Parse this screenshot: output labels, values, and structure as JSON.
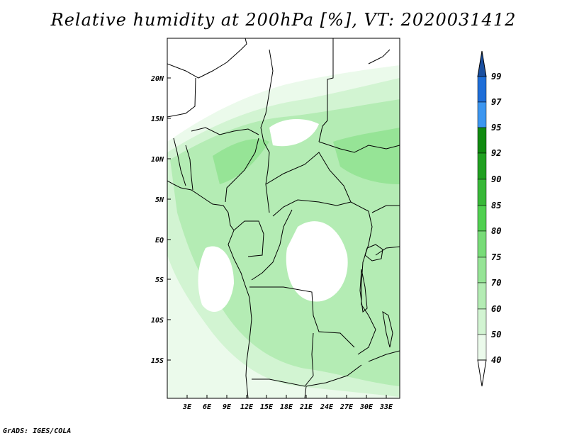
{
  "title": "Relative humidity at 200hPa [%], VT: 2020031412",
  "credit": "GrADS: IGES/COLA",
  "map": {
    "lon_labels": [
      "3E",
      "6E",
      "9E",
      "12E",
      "15E",
      "18E",
      "21E",
      "24E",
      "27E",
      "30E",
      "33E"
    ],
    "lat_labels": [
      "20N",
      "15N",
      "10N",
      "5N",
      "EQ",
      "5S",
      "10S",
      "15S"
    ],
    "lon_range": [
      0,
      35
    ],
    "lat_range": [
      -20,
      25
    ]
  },
  "colorbar": {
    "levels": [
      "99",
      "97",
      "95",
      "92",
      "90",
      "85",
      "80",
      "75",
      "70",
      "60",
      "50",
      "40"
    ],
    "colors": {
      "gt99": "#1a4fa0",
      "97_99": "#1e6ed8",
      "95_97": "#3c96f0",
      "92_95": "#108a10",
      "90_92": "#20a020",
      "85_90": "#38b838",
      "80_85": "#50d050",
      "75_80": "#78dc78",
      "70_75": "#96e496",
      "60_70": "#b4ecb4",
      "50_60": "#d2f4d2",
      "40_50": "#ebfaeb",
      "lt40": "#ffffff"
    }
  }
}
